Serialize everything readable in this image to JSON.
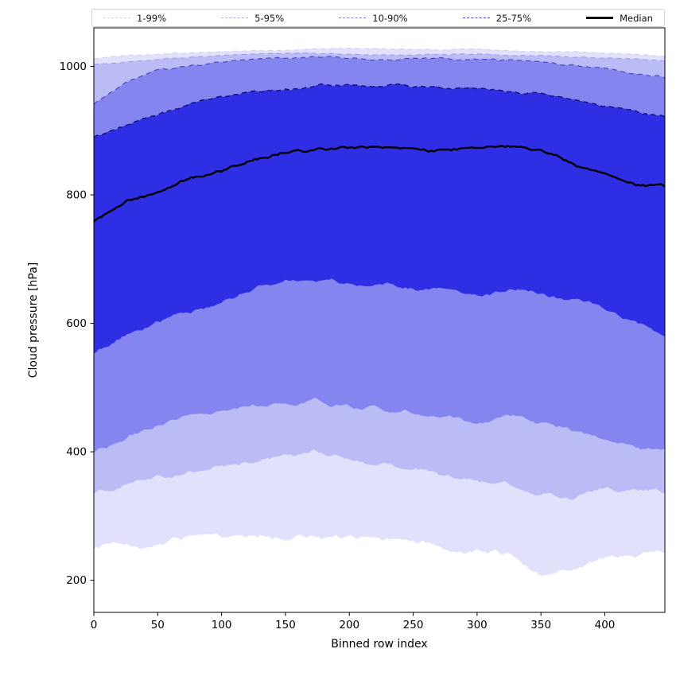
{
  "legend": {
    "items": [
      {
        "label": "1-99%",
        "color": "#cfcff2",
        "style": "dashed",
        "width": 1
      },
      {
        "label": "5-95%",
        "color": "#a7a7ef",
        "style": "dashed",
        "width": 1
      },
      {
        "label": "10-90%",
        "color": "#7d7dea",
        "style": "dashed",
        "width": 1
      },
      {
        "label": "25-75%",
        "color": "#4343d6",
        "style": "dashed",
        "width": 1
      },
      {
        "label": "Median",
        "color": "#000000",
        "style": "solid",
        "width": 3
      }
    ]
  },
  "chart_data": {
    "type": "area",
    "title": "",
    "xlabel": "Binned row index",
    "ylabel": "Cloud pressure [hPa]",
    "xlim": [
      0,
      447
    ],
    "ylim": [
      150,
      1060
    ],
    "xticks": [
      0,
      50,
      100,
      150,
      200,
      250,
      300,
      350,
      400
    ],
    "yticks": [
      200,
      400,
      600,
      800,
      1000
    ],
    "grid": false,
    "legend_position": "top-horizontal",
    "x": [
      0,
      25,
      50,
      75,
      100,
      125,
      150,
      175,
      200,
      225,
      250,
      275,
      300,
      325,
      350,
      375,
      400,
      425,
      447
    ],
    "series": [
      {
        "name": "p99_upper",
        "values": [
          1012,
          1017,
          1020,
          1022,
          1024,
          1025,
          1026,
          1027,
          1028,
          1027,
          1027,
          1026,
          1026,
          1025,
          1024,
          1022,
          1020,
          1018,
          1016
        ],
        "jitter": 1.2,
        "seed": 101
      },
      {
        "name": "p95_upper",
        "values": [
          1003,
          1008,
          1012,
          1014,
          1016,
          1018,
          1019,
          1020,
          1020,
          1019,
          1019,
          1018,
          1018,
          1017,
          1016,
          1014,
          1012,
          1010,
          1008
        ],
        "jitter": 1.5,
        "seed": 202
      },
      {
        "name": "p90_upper",
        "values": [
          940,
          975,
          995,
          1000,
          1005,
          1009,
          1012,
          1013,
          1013,
          1012,
          1012,
          1011,
          1010,
          1008,
          1005,
          1000,
          995,
          987,
          982
        ],
        "jitter": 2.5,
        "seed": 303
      },
      {
        "name": "p75_upper",
        "values": [
          890,
          910,
          925,
          940,
          950,
          958,
          965,
          970,
          975,
          970,
          968,
          965,
          963,
          958,
          955,
          945,
          935,
          928,
          920
        ],
        "jitter": 3.5,
        "seed": 404
      },
      {
        "name": "p50_median",
        "values": [
          760,
          790,
          808,
          828,
          840,
          855,
          870,
          868,
          872,
          870,
          868,
          866,
          870,
          872,
          868,
          850,
          838,
          818,
          812
        ],
        "jitter": 4.5,
        "seed": 505
      },
      {
        "name": "p25_lower",
        "values": [
          550,
          580,
          600,
          615,
          632,
          655,
          672,
          670,
          662,
          658,
          655,
          648,
          642,
          650,
          648,
          638,
          620,
          598,
          575
        ],
        "jitter": 6,
        "seed": 606
      },
      {
        "name": "p10_lower",
        "values": [
          400,
          420,
          440,
          452,
          458,
          468,
          477,
          478,
          470,
          468,
          465,
          455,
          447,
          452,
          445,
          432,
          425,
          410,
          400
        ],
        "jitter": 6,
        "seed": 707
      },
      {
        "name": "p5_lower",
        "values": [
          333,
          346,
          360,
          374,
          382,
          390,
          396,
          400,
          390,
          385,
          378,
          368,
          360,
          355,
          336,
          330,
          340,
          338,
          335
        ],
        "jitter": 7,
        "seed": 808
      },
      {
        "name": "p1_lower",
        "values": [
          245,
          255,
          260,
          262,
          265,
          268,
          270,
          272,
          262,
          258,
          255,
          252,
          248,
          240,
          215,
          222,
          238,
          235,
          240
        ],
        "jitter": 8,
        "seed": 909
      }
    ],
    "bands": [
      {
        "name": "1-99",
        "label": "1-99%",
        "upper": "p99_upper",
        "lower": "p1_lower",
        "fill": "#e1e1fb",
        "edge": "#cfcff2",
        "edge_width": 1.0
      },
      {
        "name": "5-95",
        "label": "5-95%",
        "upper": "p95_upper",
        "lower": "p5_lower",
        "fill": "#bbbbf6",
        "edge": "#9e9eeb",
        "edge_width": 1.1
      },
      {
        "name": "10-90",
        "label": "10-90%",
        "upper": "p90_upper",
        "lower": "p10_lower",
        "fill": "#8585ef",
        "edge": "#4d4dcc",
        "edge_width": 1.3
      },
      {
        "name": "25-75",
        "label": "25-75%",
        "upper": "p75_upper",
        "lower": "p25_lower",
        "fill": "#2e2ee4",
        "edge": "#15157d",
        "edge_width": 1.6
      }
    ],
    "median": {
      "series": "p50_median",
      "label": "Median",
      "color": "#000000",
      "width": 2.4
    }
  }
}
